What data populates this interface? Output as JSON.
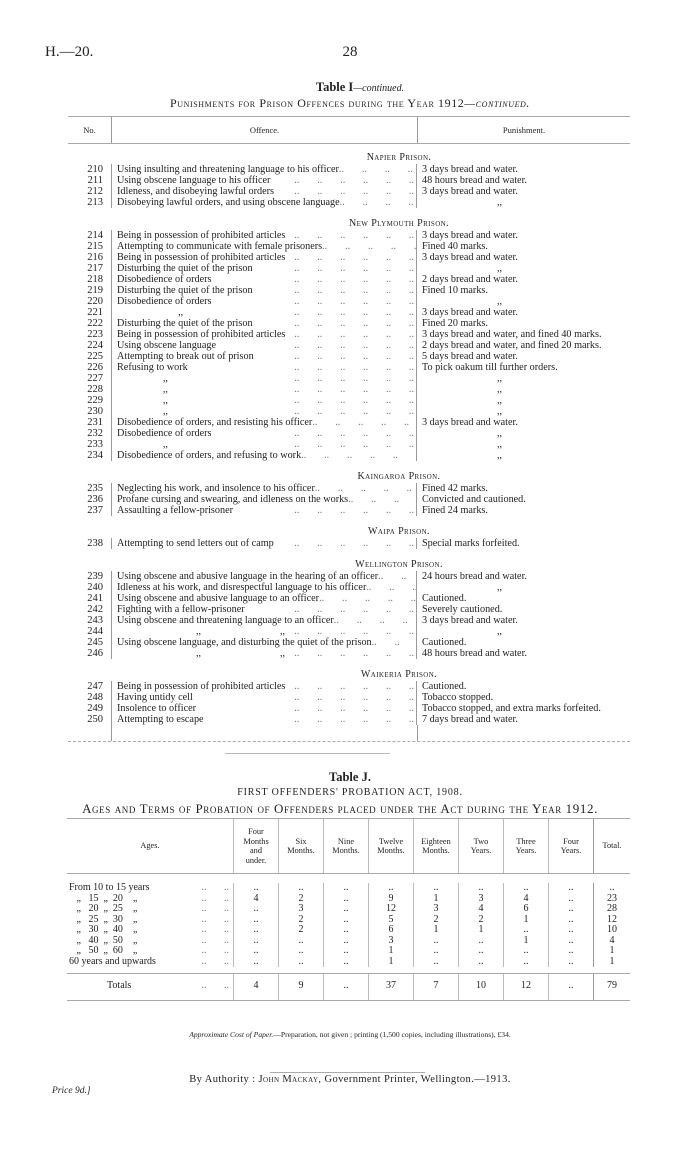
{
  "header": {
    "ref": "H.—20.",
    "page": "28"
  },
  "table_i": {
    "title": "Table I",
    "title_suffix": "—continued.",
    "subtitle": "Punishments for Prison Offences during the Year 1912",
    "subtitle_suffix": "—continued.",
    "columns": [
      "No.",
      "Offence.",
      "Punishment."
    ],
    "sections": [
      {
        "heading": "Napier Prison.",
        "rows": [
          {
            "no": "210",
            "offence": "Using insulting and threatening language to his officer",
            "punishment": "3 days bread and water."
          },
          {
            "no": "211",
            "offence": "Using obscene language to his officer",
            "punishment": "48 hours bread and water."
          },
          {
            "no": "212",
            "offence": "Idleness, and disobeying lawful orders",
            "punishment": "3 days bread and water."
          },
          {
            "no": "213",
            "offence": "Disobeying lawful orders, and using obscene language",
            "punishment": ",,"
          }
        ]
      },
      {
        "heading": "New Plymouth Prison.",
        "rows": [
          {
            "no": "214",
            "offence": "Being in possession of prohibited articles",
            "punishment": "3 days bread and water."
          },
          {
            "no": "215",
            "offence": "Attempting to communicate with female prisoners",
            "punishment": "Fined 40 marks."
          },
          {
            "no": "216",
            "offence": "Being in possession of prohibited articles",
            "punishment": "3 days bread and water."
          },
          {
            "no": "217",
            "offence": "Disturbing the quiet of the prison",
            "punishment": ",,"
          },
          {
            "no": "218",
            "offence": "Disobedience of orders",
            "punishment": "2 days bread and water."
          },
          {
            "no": "219",
            "offence": "Disturbing the quiet of the prison",
            "punishment": "Fined 10 marks."
          },
          {
            "no": "220",
            "offence": "Disobedience of orders",
            "punishment": ",,"
          },
          {
            "no": "221",
            "offence": "                        ,,",
            "punishment": "3 days bread and water."
          },
          {
            "no": "222",
            "offence": "Disturbing the quiet of the prison",
            "punishment": "Fined 20 marks."
          },
          {
            "no": "223",
            "offence": "Being in possession of prohibited articles",
            "punishment": "3 days bread and water, and fined 40 marks."
          },
          {
            "no": "224",
            "offence": "Using obscene language",
            "punishment": "2 days bread and water, and fined 20 marks."
          },
          {
            "no": "225",
            "offence": "Attempting to break out of prison",
            "punishment": "5 days bread and water."
          },
          {
            "no": "226",
            "offence": "Refusing to work",
            "punishment": "To pick oakum till further orders."
          },
          {
            "no": "227",
            "offence": "                  ,,",
            "punishment": ",,"
          },
          {
            "no": "228",
            "offence": "                  ,,",
            "punishment": ",,"
          },
          {
            "no": "229",
            "offence": "                  ,,",
            "punishment": ",,"
          },
          {
            "no": "230",
            "offence": "                  ,,",
            "punishment": ",,"
          },
          {
            "no": "231",
            "offence": "Disobedience of orders, and resisting his officer",
            "punishment": "3 days bread and water."
          },
          {
            "no": "232",
            "offence": "Disobedience of orders",
            "punishment": ",,"
          },
          {
            "no": "233",
            "offence": "                  ,,",
            "punishment": ",,"
          },
          {
            "no": "234",
            "offence": "Disobedience of orders, and refusing to work",
            "punishment": ",,"
          }
        ]
      },
      {
        "heading": "Kaingaroa Prison.",
        "rows": [
          {
            "no": "235",
            "offence": "Neglecting his work, and insolence to his officer",
            "punishment": "Fined 42 marks."
          },
          {
            "no": "236",
            "offence": "Profane cursing and swearing, and idleness on the works",
            "punishment": "Convicted and cautioned."
          },
          {
            "no": "237",
            "offence": "Assaulting a fellow-prisoner",
            "punishment": "Fined 24 marks."
          }
        ]
      },
      {
        "heading": "Waipa Prison.",
        "rows": [
          {
            "no": "238",
            "offence": "Attempting to send letters out of camp",
            "punishment": "Special marks forfeited."
          }
        ]
      },
      {
        "heading": "Wellington Prison.",
        "rows": [
          {
            "no": "239",
            "offence": "Using obscene and abusive language in the hearing of an officer",
            "punishment": "24 hours bread and water."
          },
          {
            "no": "240",
            "offence": "Idleness at his work, and disrespectful language to his officer",
            "punishment": ",,"
          },
          {
            "no": "241",
            "offence": "Using obscene and abusive language to an officer",
            "punishment": "Cautioned."
          },
          {
            "no": "242",
            "offence": "Fighting with a fellow-prisoner",
            "punishment": "Severely cautioned."
          },
          {
            "no": "243",
            "offence": "Using obscene and threatening language to an officer",
            "punishment": "3 days bread and water."
          },
          {
            "no": "244",
            "offence": "                               ,,                               ,,",
            "punishment": ",,"
          },
          {
            "no": "245",
            "offence": "Using obscene language, and disturbing the quiet of the prison",
            "punishment": "Cautioned."
          },
          {
            "no": "246",
            "offence": "                               ,,                               ,,",
            "punishment": "48 hours bread and water."
          }
        ]
      },
      {
        "heading": "Waikeria Prison.",
        "rows": [
          {
            "no": "247",
            "offence": "Being in possession of prohibited articles",
            "punishment": "Cautioned."
          },
          {
            "no": "248",
            "offence": "Having untidy cell",
            "punishment": "Tobacco stopped."
          },
          {
            "no": "249",
            "offence": "Insolence to officer",
            "punishment": "Tobacco stopped, and extra marks forfeited."
          },
          {
            "no": "250",
            "offence": "Attempting to escape",
            "punishment": "7 days bread and water."
          }
        ]
      }
    ]
  },
  "table_j": {
    "title": "Table J.",
    "subtitle": "FIRST OFFENDERS' PROBATION ACT, 1908.",
    "heading": "Ages and Terms of Probation of Offenders placed under the Act during the Year 1912.",
    "columns": [
      "Ages.",
      "Four\nMonths\nand\nunder.",
      "Six\nMonths.",
      "Nine\nMonths.",
      "Twelve\nMonths.",
      "Eighteen\nMonths.",
      "Two\nYears.",
      "Three\nYears.",
      "Four\nYears.",
      "Total."
    ],
    "rows": [
      {
        "age": "From 10 to 15 years",
        "values": [
          "..",
          "..",
          "..",
          "..",
          "..",
          "..",
          "..",
          "..",
          ".."
        ]
      },
      {
        "age": "   „   15  „  20    „",
        "values": [
          "4",
          "2",
          "..",
          "9",
          "1",
          "3",
          "4",
          "..",
          "23"
        ]
      },
      {
        "age": "   „   20  „  25    „",
        "values": [
          "..",
          "3",
          "..",
          "12",
          "3",
          "4",
          "6",
          "..",
          "28"
        ]
      },
      {
        "age": "   „   25  „  30    „",
        "values": [
          "..",
          "2",
          "..",
          "5",
          "2",
          "2",
          "1",
          "..",
          "12"
        ]
      },
      {
        "age": "   „   30  „  40    „",
        "values": [
          "..",
          "2",
          "..",
          "6",
          "1",
          "1",
          "..",
          "..",
          "10"
        ]
      },
      {
        "age": "   „   40  „  50    „",
        "values": [
          "..",
          "..",
          "..",
          "3",
          "..",
          "..",
          "1",
          "..",
          "4"
        ]
      },
      {
        "age": "   „   50  „  60    „",
        "values": [
          "..",
          "..",
          "..",
          "1",
          "..",
          "..",
          "..",
          "..",
          "1"
        ]
      },
      {
        "age": "60 years and upwards",
        "values": [
          "..",
          "..",
          "..",
          "1",
          "..",
          "..",
          "..",
          "..",
          "1"
        ]
      }
    ],
    "totals": {
      "label": "Totals",
      "values": [
        "4",
        "9",
        "..",
        "37",
        "7",
        "10",
        "12",
        "..",
        "79"
      ]
    }
  },
  "footer": {
    "cost_label": "Approximate Cost of Paper.",
    "cost_text": "—Preparation, not given ;  printing (1,500 copies, including illustrations), £34.",
    "authority_prefix": "By Authority : ",
    "authority_name": "John Mackay",
    "authority_suffix": ", Government Printer, Wellington.—1913.",
    "price": "Price 9d.]"
  }
}
